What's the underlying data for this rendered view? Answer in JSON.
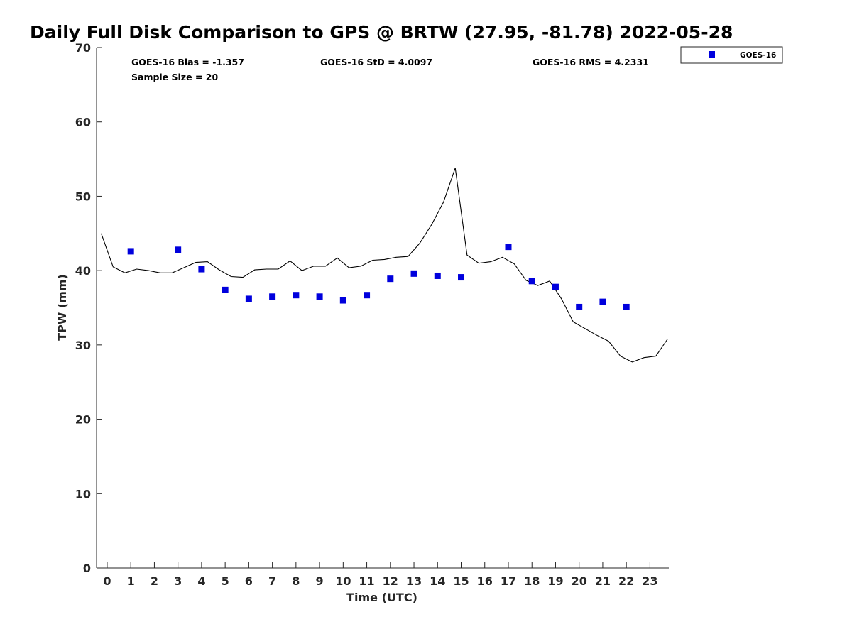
{
  "chart_data": {
    "type": "scatter",
    "title": "Daily Full Disk Comparison to GPS @ BRTW (27.95, -81.78) 2022-05-28",
    "xlabel": "Time (UTC)",
    "ylabel": "TPW (mm)",
    "xlim": [
      -0.45,
      23.8
    ],
    "ylim": [
      0,
      70
    ],
    "x_ticks": [
      0,
      1,
      2,
      3,
      4,
      5,
      6,
      7,
      8,
      9,
      10,
      11,
      12,
      13,
      14,
      15,
      16,
      17,
      18,
      19,
      20,
      21,
      22,
      23
    ],
    "y_ticks": [
      0,
      10,
      20,
      30,
      40,
      50,
      60,
      70
    ],
    "grid": false,
    "legend_position": "top-right (outside plot)",
    "stats": {
      "bias": "GOES-16 Bias = -1.357",
      "std": "GOES-16 StD = 4.0097",
      "rms": "GOES-16 RMS = 4.2331",
      "sample": "Sample Size = 20"
    },
    "series": [
      {
        "name": "GOES-16",
        "style": "markers",
        "marker": "square",
        "color": "#0000dd",
        "x": [
          1,
          3,
          4,
          5,
          6,
          7,
          8,
          9,
          10,
          11,
          12,
          13,
          14,
          15,
          17,
          18,
          19,
          20,
          21,
          22
        ],
        "y": [
          42.6,
          42.8,
          40.2,
          37.4,
          36.2,
          36.5,
          36.7,
          36.5,
          36.0,
          36.7,
          38.9,
          39.6,
          39.3,
          39.1,
          43.2,
          38.6,
          37.8,
          35.1,
          35.8,
          35.1
        ]
      },
      {
        "style": "line",
        "color": "#000000",
        "x": [
          -0.25,
          0.25,
          0.75,
          1.25,
          1.75,
          2.25,
          2.75,
          3.25,
          3.75,
          4.25,
          4.75,
          5.25,
          5.75,
          6.25,
          6.75,
          7.25,
          7.75,
          8.25,
          8.75,
          9.25,
          9.75,
          10.25,
          10.75,
          11.25,
          11.75,
          12.25,
          12.75,
          13.25,
          13.75,
          14.25,
          14.75,
          15.25,
          15.75,
          16.25,
          16.75,
          17.25,
          17.75,
          18.25,
          18.75,
          19.25,
          19.75,
          20.25,
          20.75,
          21.25,
          21.75,
          22.25,
          22.75,
          23.25,
          23.75
        ],
        "y": [
          45.0,
          40.5,
          39.7,
          40.2,
          40.0,
          39.7,
          39.7,
          40.4,
          41.1,
          41.2,
          40.1,
          39.2,
          39.1,
          40.1,
          40.2,
          40.2,
          41.3,
          40.0,
          40.6,
          40.6,
          41.7,
          40.4,
          40.6,
          41.4,
          41.5,
          41.8,
          41.9,
          43.7,
          46.2,
          49.2,
          53.8,
          42.1,
          41.0,
          41.2,
          41.8,
          40.9,
          38.7,
          38.0,
          38.6,
          36.2,
          33.1,
          32.2,
          31.3,
          30.5,
          28.5,
          27.7,
          28.3,
          28.5,
          30.8
        ]
      }
    ]
  }
}
